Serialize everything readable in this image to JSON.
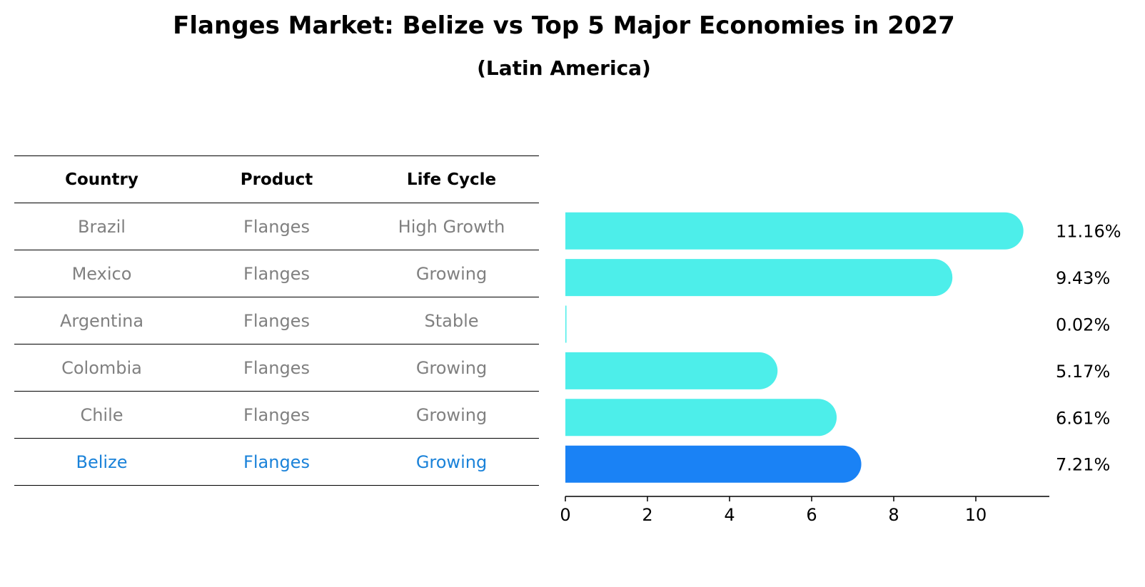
{
  "title": "Flanges Market: Belize vs Top 5 Major Economies in 2027",
  "subtitle": "(Latin America)",
  "table": {
    "headers": [
      "Country",
      "Product",
      "Life Cycle"
    ],
    "rows": [
      [
        "Brazil",
        "Flanges",
        "High Growth"
      ],
      [
        "Mexico",
        "Flanges",
        "Growing"
      ],
      [
        "Argentina",
        "Flanges",
        "Stable"
      ],
      [
        "Colombia",
        "Flanges",
        "Growing"
      ],
      [
        "Chile",
        "Flanges",
        "Growing"
      ],
      [
        "Belize",
        "Flanges",
        "Growing"
      ]
    ],
    "highlight_row": 5,
    "text_color": "#808080",
    "highlight_color": "#1a82d9"
  },
  "chart_data": {
    "type": "bar",
    "orientation": "horizontal",
    "categories": [
      "Brazil",
      "Mexico",
      "Argentina",
      "Colombia",
      "Chile",
      "Belize"
    ],
    "values": [
      11.16,
      9.43,
      0.02,
      5.17,
      6.61,
      7.21
    ],
    "value_labels": [
      "11.16%",
      "9.43%",
      "0.02%",
      "5.17%",
      "6.61%",
      "7.21%"
    ],
    "xticks": [
      0,
      2,
      4,
      6,
      8,
      10
    ],
    "xlim": [
      0,
      11.7
    ],
    "grid": false,
    "bar_color": "#4deeea",
    "highlight_color": "#1a82f5",
    "highlight_index": 5
  }
}
